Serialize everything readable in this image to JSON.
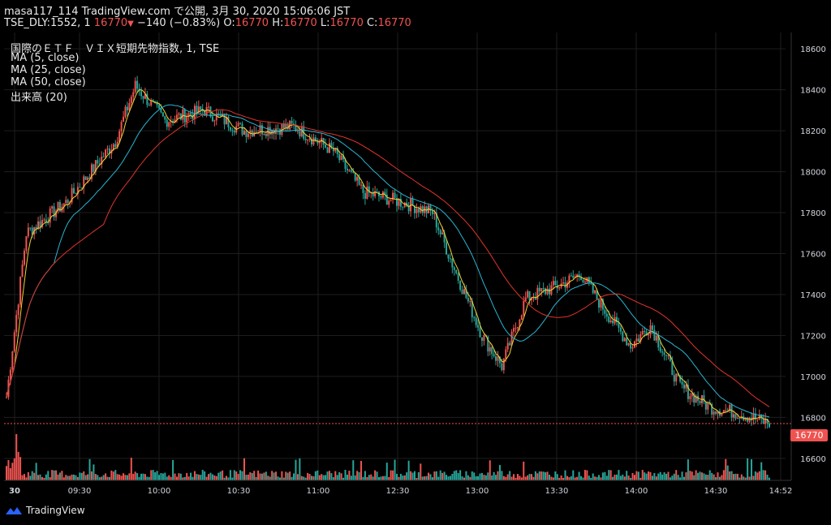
{
  "header": {
    "publish_line": "masa117_114 TradingView.com で公開, 3月 30, 2020 15:06:06 JST",
    "symbol": "TSE_DLY:1552, 1",
    "last": "16770",
    "change": "−140 (−0.83%)",
    "o_label": "O:",
    "o": "16770",
    "h_label": "H:",
    "h": "16770",
    "l_label": "L:",
    "l": "16770",
    "c_label": "C:",
    "c": "16770"
  },
  "legend": [
    "国際のＥＴＦ　ＶＩＸ短期先物指数, 1, TSE",
    "MA (5, close)",
    "MA (25, close)",
    "MA (50, close)",
    "出来高 (20)"
  ],
  "brand": {
    "name": "TradingView",
    "icon": "tradingview-logo-icon"
  },
  "colors": {
    "up": "#ef5350",
    "down": "#26a69a",
    "ma5": "#f5d232",
    "ma25": "#2ab5d1",
    "ma50": "#e0342c",
    "vol_up": "#ef5350",
    "vol_down": "#26a69a",
    "grid": "#1e1e1e",
    "axis_text": "#d1d4dc"
  },
  "chart_data": {
    "type": "candlestick",
    "title": "国際のＥＴＦ　ＶＩＸ短期先物指数, 1, TSE",
    "y_ticks": [
      16600,
      16800,
      17000,
      17200,
      17400,
      17600,
      17800,
      18000,
      18200,
      18400,
      18600
    ],
    "ylim": [
      16540,
      18680
    ],
    "x_ticks": [
      "30",
      "09:30",
      "10:00",
      "10:30",
      "11:00",
      "12:30",
      "13:00",
      "13:30",
      "14:00",
      "14:30",
      "14:52"
    ],
    "current_price": 16770,
    "current_price_label": "16770",
    "series": [
      {
        "name": "MA (5, close)",
        "type": "line"
      },
      {
        "name": "MA (25, close)",
        "type": "line"
      },
      {
        "name": "MA (50, close)",
        "type": "line"
      },
      {
        "name": "出来高 (20)",
        "type": "volume"
      }
    ],
    "key_points": [
      {
        "t": 0,
        "close": 16900
      },
      {
        "t": 10,
        "close": 17700
      },
      {
        "t": 30,
        "close": 17850
      },
      {
        "t": 55,
        "close": 18150
      },
      {
        "t": 65,
        "close": 18420
      },
      {
        "t": 80,
        "close": 18250
      },
      {
        "t": 100,
        "close": 18300
      },
      {
        "t": 120,
        "close": 18200
      },
      {
        "t": 145,
        "close": 18220
      },
      {
        "t": 165,
        "close": 18100
      },
      {
        "t": 180,
        "close": 17900
      },
      {
        "t": 200,
        "close": 17850
      },
      {
        "t": 215,
        "close": 17800
      },
      {
        "t": 225,
        "close": 17550
      },
      {
        "t": 240,
        "close": 17200
      },
      {
        "t": 250,
        "close": 17050
      },
      {
        "t": 262,
        "close": 17380
      },
      {
        "t": 280,
        "close": 17450
      },
      {
        "t": 290,
        "close": 17500
      },
      {
        "t": 300,
        "close": 17350
      },
      {
        "t": 315,
        "close": 17150
      },
      {
        "t": 325,
        "close": 17250
      },
      {
        "t": 340,
        "close": 16950
      },
      {
        "t": 355,
        "close": 16850
      },
      {
        "t": 370,
        "close": 16820
      },
      {
        "t": 385,
        "close": 16770
      }
    ]
  }
}
